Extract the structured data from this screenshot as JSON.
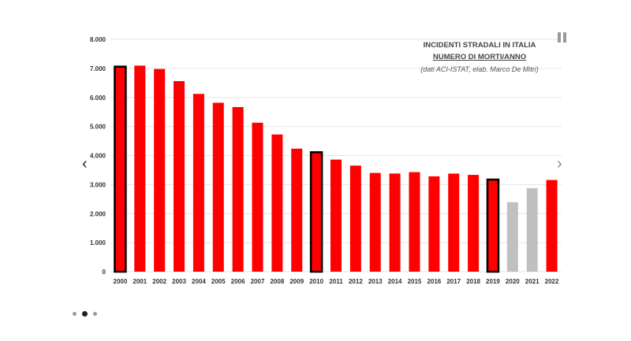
{
  "chart_data": {
    "type": "bar",
    "title": "INCIDENTI STRADALI IN ITALIA",
    "subtitle": "NUMERO DI MORTI/ANNO",
    "source": "(dati ACI-ISTAT, elab. Marco De Mitri)",
    "xlabel": "",
    "ylabel": "",
    "ylim": [
      0,
      8000
    ],
    "yticks": [
      "0",
      "1.000",
      "2.000",
      "3.000",
      "4.000",
      "5.000",
      "6.000",
      "7.000",
      "8.000"
    ],
    "grid": true,
    "categories": [
      "2000",
      "2001",
      "2002",
      "2003",
      "2004",
      "2005",
      "2006",
      "2007",
      "2008",
      "2009",
      "2010",
      "2011",
      "2012",
      "2013",
      "2014",
      "2015",
      "2016",
      "2017",
      "2018",
      "2019",
      "2020",
      "2021",
      "2022"
    ],
    "values": [
      7061,
      7096,
      6980,
      6563,
      6122,
      5818,
      5669,
      5131,
      4725,
      4237,
      4114,
      3860,
      3653,
      3401,
      3381,
      3428,
      3283,
      3378,
      3334,
      3173,
      2395,
      2875,
      3159
    ],
    "bar_colors": [
      "#ff0000",
      "#ff0000",
      "#ff0000",
      "#ff0000",
      "#ff0000",
      "#ff0000",
      "#ff0000",
      "#ff0000",
      "#ff0000",
      "#ff0000",
      "#ff0000",
      "#ff0000",
      "#ff0000",
      "#ff0000",
      "#ff0000",
      "#ff0000",
      "#ff0000",
      "#ff0000",
      "#ff0000",
      "#ff0000",
      "#c0c0c0",
      "#c0c0c0",
      "#ff0000"
    ],
    "highlighted": [
      "2000",
      "2010",
      "2019"
    ]
  },
  "controls": {
    "prev_icon": "chevron-left-icon",
    "next_icon": "chevron-right-icon",
    "pause_icon": "pause-icon",
    "slide_count": 3,
    "active_slide": 2
  }
}
